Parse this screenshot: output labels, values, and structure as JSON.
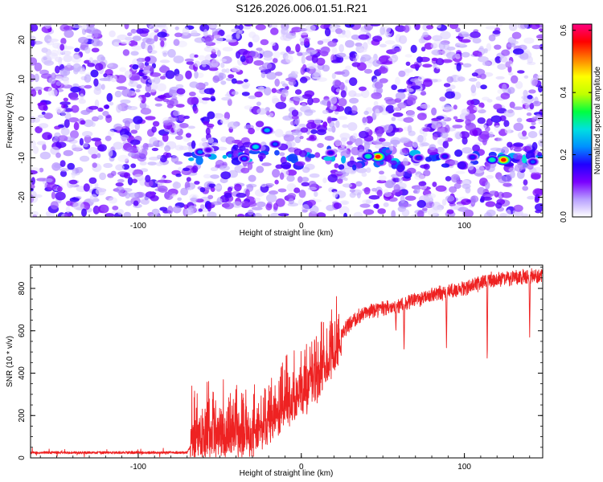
{
  "title": "S126.2026.006.01.51.R21",
  "chart_data": [
    {
      "type": "heatmap",
      "xlabel": "Height of straight line (km)",
      "ylabel": "Frequency (Hz)",
      "xlim": [
        -166,
        148
      ],
      "ylim": [
        -25,
        24
      ],
      "xticks": [
        -100,
        0,
        100
      ],
      "yticks": [
        -20,
        -10,
        0,
        10,
        20
      ],
      "colorbar": {
        "label": "Normalized spectral amplitude",
        "range": [
          0.0,
          0.62
        ],
        "ticks": [
          "0.0",
          "0.2",
          "0.4",
          "0.6"
        ],
        "colormap": [
          "#ffffff",
          "#b8a0ff",
          "#7a00ff",
          "#2000ff",
          "#0090ff",
          "#00e0e0",
          "#00ff40",
          "#c0ff00",
          "#ffff00",
          "#ff8000",
          "#ff0000",
          "#ff0080"
        ]
      },
      "signal_band": {
        "frequency_hz": -10,
        "x_start_km": -70,
        "x_end_km": 148
      },
      "hotspots": [
        {
          "x": 47,
          "y": -9.7,
          "amp": 0.55
        },
        {
          "x": 124,
          "y": -10.5,
          "amp": 0.55
        },
        {
          "x": 117,
          "y": -10.5,
          "amp": 0.3
        },
        {
          "x": 41,
          "y": -9.6,
          "amp": 0.3
        },
        {
          "x": -28,
          "y": -7.2,
          "amp": 0.28
        },
        {
          "x": -21,
          "y": -3,
          "amp": 0.25
        },
        {
          "x": -62,
          "y": -8.5,
          "amp": 0.22
        },
        {
          "x": -16,
          "y": -6.5,
          "amp": 0.2
        },
        {
          "x": -35,
          "y": -10.2,
          "amp": 0.2
        },
        {
          "x": 72,
          "y": -10,
          "amp": 0.18
        },
        {
          "x": 88,
          "y": -9.6,
          "amp": 0.18
        },
        {
          "x": 105,
          "y": -9.8,
          "amp": 0.18
        },
        {
          "x": 18,
          "y": -8.7,
          "amp": 0.16
        },
        {
          "x": -57,
          "y": -8,
          "amp": 0.14
        },
        {
          "x": 142,
          "y": -11,
          "amp": 0.2
        }
      ]
    },
    {
      "type": "line",
      "xlabel": "Height of straight line (km)",
      "ylabel": "SNR (10 * v/v)",
      "xlim": [
        -166,
        148
      ],
      "ylim": [
        0,
        910
      ],
      "xticks": [
        -100,
        0,
        100
      ],
      "yticks": [
        0,
        200,
        400,
        600,
        800
      ],
      "series": [
        {
          "color": "#ee2222",
          "profile": [
            {
              "x": -166,
              "y": 25
            },
            {
              "x": -70,
              "y": 25
            },
            {
              "x": -65,
              "y": 90
            },
            {
              "x": -30,
              "y": 110
            },
            {
              "x": -15,
              "y": 200
            },
            {
              "x": 0,
              "y": 300
            },
            {
              "x": 10,
              "y": 380
            },
            {
              "x": 20,
              "y": 500
            },
            {
              "x": 25,
              "y": 580
            },
            {
              "x": 30,
              "y": 640
            },
            {
              "x": 40,
              "y": 690
            },
            {
              "x": 60,
              "y": 720
            },
            {
              "x": 80,
              "y": 770
            },
            {
              "x": 95,
              "y": 790
            },
            {
              "x": 115,
              "y": 840
            },
            {
              "x": 148,
              "y": 860
            }
          ],
          "dips": [
            {
              "x": 20,
              "y": 430
            },
            {
              "x": 24,
              "y": 490
            },
            {
              "x": 58,
              "y": 590
            },
            {
              "x": 63,
              "y": 490
            },
            {
              "x": 89,
              "y": 520
            },
            {
              "x": 114,
              "y": 430
            },
            {
              "x": 140,
              "y": 570
            }
          ]
        }
      ]
    }
  ]
}
